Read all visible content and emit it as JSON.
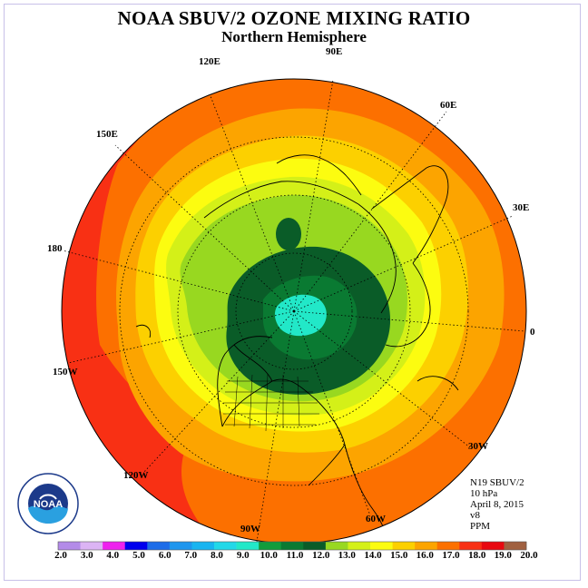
{
  "title": "NOAA SBUV/2 OZONE MIXING RATIO",
  "subtitle": "Northern Hemisphere",
  "longitude_labels": [
    "90E",
    "60E",
    "30E",
    "0",
    "30W",
    "60W",
    "90W",
    "120W",
    "150W",
    "180",
    "150E",
    "120E"
  ],
  "info": {
    "satellite": "N19 SBUV/2",
    "level": "10 hPa",
    "date": "April 8, 2015",
    "version": "v8",
    "units": "PPM"
  },
  "colorbar": {
    "labels": [
      "2.0",
      "3.0",
      "4.0",
      "5.0",
      "6.0",
      "7.0",
      "8.0",
      "9.0",
      "10.0",
      "11.0",
      "12.0",
      "13.0",
      "14.0",
      "15.0",
      "16.0",
      "17.0",
      "18.0",
      "19.0",
      "20.0"
    ],
    "colors": [
      "#b38be8",
      "#dcb4f4",
      "#ee22ee",
      "#0000ee",
      "#1c6ce8",
      "#1e96ee",
      "#18b4f0",
      "#22d8e8",
      "#22e8c8",
      "#129c3c",
      "#0a7a32",
      "#0a5c28",
      "#98d820",
      "#d4f018",
      "#fcfc10",
      "#fcd000",
      "#fca400",
      "#fc7000",
      "#f83014",
      "#e80810",
      "#a06040"
    ]
  },
  "logo_text": "NOAA"
}
